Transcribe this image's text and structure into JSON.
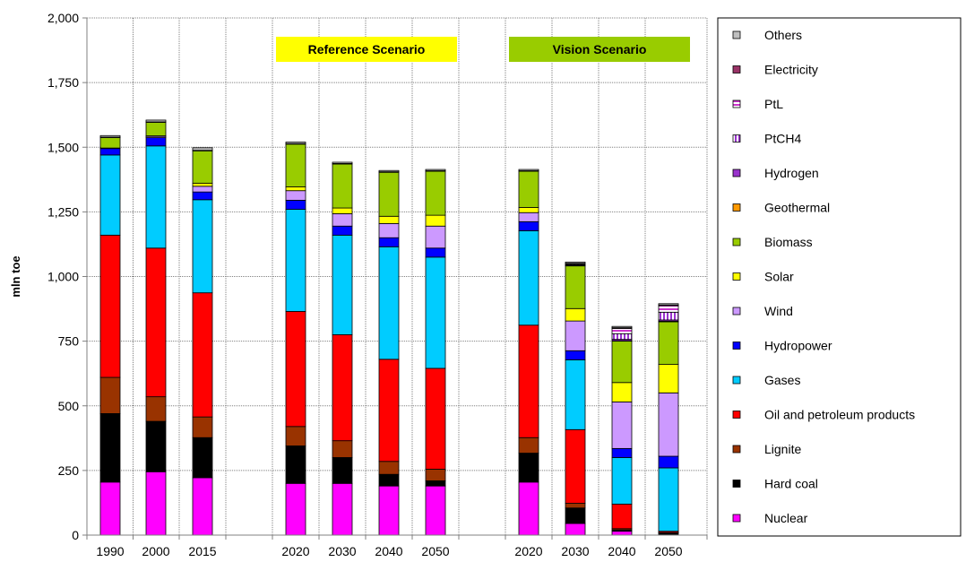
{
  "chart_data": {
    "type": "bar",
    "stacked": true,
    "ylabel": "mln toe",
    "xlabel": "",
    "title": "",
    "ylim": [
      0,
      2000
    ],
    "yticks": [
      "0",
      "250",
      "500",
      "750",
      "1,000",
      "1,250",
      "1,500",
      "1,750",
      "2,000"
    ],
    "ytick_values": [
      0,
      250,
      500,
      750,
      1000,
      1250,
      1500,
      1750,
      2000
    ],
    "grid": true,
    "legend_position": "right",
    "groups": [
      {
        "label": "",
        "categories": [
          "1990",
          "2000",
          "2015"
        ]
      },
      {
        "label": "Reference Scenario",
        "categories": [
          "2020",
          "2030",
          "2040",
          "2050"
        ]
      },
      {
        "label": "Vision  Scenario",
        "categories": [
          "2020",
          "2030",
          "2040",
          "2050"
        ]
      }
    ],
    "categories": [
      "1990",
      "2000",
      "2015",
      "2020",
      "2030",
      "2040",
      "2050",
      "2020",
      "2030",
      "2040",
      "2050"
    ],
    "series": [
      {
        "name": "Nuclear",
        "color": "#ff00ff",
        "values": [
          205,
          245,
          222,
          200,
          200,
          190,
          190,
          205,
          45,
          15,
          0
        ]
      },
      {
        "name": "Hard coal",
        "color": "#000000",
        "values": [
          265,
          195,
          155,
          145,
          100,
          45,
          20,
          112,
          60,
          5,
          8
        ]
      },
      {
        "name": "Lignite",
        "color": "#993300",
        "values": [
          140,
          95,
          80,
          75,
          65,
          50,
          45,
          60,
          18,
          5,
          2
        ]
      },
      {
        "name": "Oil and petroleum products",
        "color": "#ff0000",
        "values": [
          550,
          575,
          480,
          445,
          410,
          395,
          390,
          435,
          285,
          95,
          5
        ]
      },
      {
        "name": "Gases",
        "color": "#00ccff",
        "values": [
          310,
          395,
          360,
          395,
          385,
          435,
          430,
          365,
          270,
          180,
          245
        ]
      },
      {
        "name": "Hydropower",
        "color": "#0000ff",
        "values": [
          25,
          32,
          30,
          35,
          35,
          35,
          35,
          35,
          35,
          35,
          45
        ]
      },
      {
        "name": "Wind",
        "color": "#cc99ff",
        "values": [
          2,
          5,
          22,
          37,
          48,
          55,
          85,
          35,
          115,
          180,
          245
        ]
      },
      {
        "name": "Solar",
        "color": "#ffff00",
        "values": [
          0,
          2,
          12,
          15,
          22,
          28,
          42,
          20,
          48,
          75,
          110
        ]
      },
      {
        "name": "Biomass",
        "color": "#99cc00",
        "values": [
          40,
          52,
          125,
          165,
          170,
          170,
          170,
          140,
          165,
          160,
          165
        ]
      },
      {
        "name": "Geothermal",
        "color": "#ff9900",
        "values": [
          2,
          2,
          2,
          2,
          2,
          2,
          2,
          2,
          2,
          2,
          2
        ]
      },
      {
        "name": "Hydrogen",
        "color": "#9933cc",
        "values": [
          0,
          0,
          0,
          0,
          0,
          0,
          0,
          0,
          2,
          5,
          5
        ]
      },
      {
        "name": "PtCH4",
        "color": "#9933cc",
        "pattern": "vstripe",
        "values": [
          0,
          0,
          0,
          0,
          0,
          0,
          0,
          0,
          3,
          22,
          30
        ]
      },
      {
        "name": "PtL",
        "color": "#cc33cc",
        "pattern": "hstripe",
        "values": [
          0,
          0,
          0,
          0,
          0,
          0,
          0,
          0,
          3,
          20,
          25
        ]
      },
      {
        "name": "Electricity",
        "color": "#993366",
        "values": [
          0,
          0,
          0,
          0,
          0,
          0,
          0,
          0,
          0,
          3,
          3
        ]
      },
      {
        "name": "Others",
        "color": "#c0c0c0",
        "values": [
          6,
          7,
          10,
          6,
          5,
          5,
          5,
          5,
          5,
          5,
          5
        ]
      }
    ]
  }
}
